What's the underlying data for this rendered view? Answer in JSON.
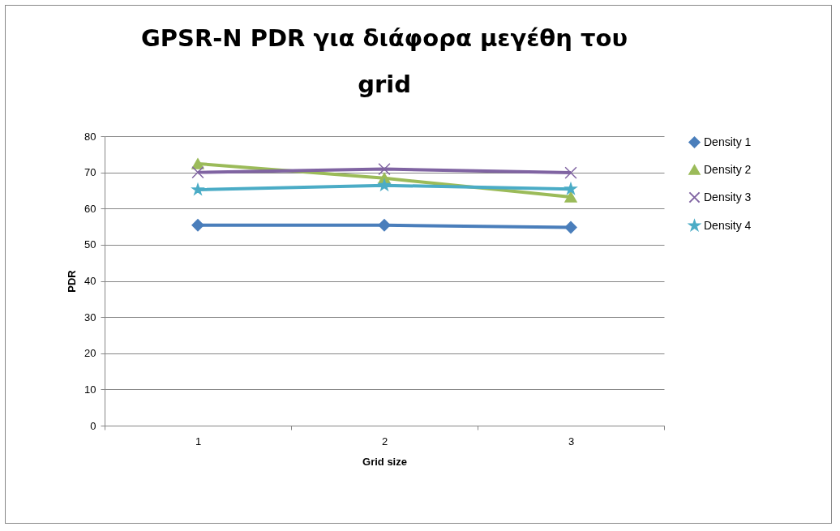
{
  "chart_data": {
    "type": "line",
    "title": "GPSR-N PDR για διάφορα μεγέθη του grid",
    "xlabel": "Grid size",
    "ylabel": "PDR",
    "categories": [
      "1",
      "2",
      "3"
    ],
    "ylim": [
      0,
      80
    ],
    "yticks": [
      0,
      10,
      20,
      30,
      40,
      50,
      60,
      70,
      80
    ],
    "grid": "y",
    "legend": "right",
    "series": [
      {
        "name": "Density 1",
        "color": "#4a7ebb",
        "marker": "diamond",
        "values": [
          55.4,
          55.4,
          54.8
        ]
      },
      {
        "name": "Density 2",
        "color": "#9bbb59",
        "marker": "triangle",
        "values": [
          72.4,
          68.4,
          63.2
        ]
      },
      {
        "name": "Density 3",
        "color": "#8064a2",
        "marker": "cross",
        "values": [
          70,
          70.9,
          69.9
        ]
      },
      {
        "name": "Density 4",
        "color": "#4bacc6",
        "marker": "star",
        "values": [
          65.2,
          66.4,
          65.4
        ]
      }
    ]
  }
}
